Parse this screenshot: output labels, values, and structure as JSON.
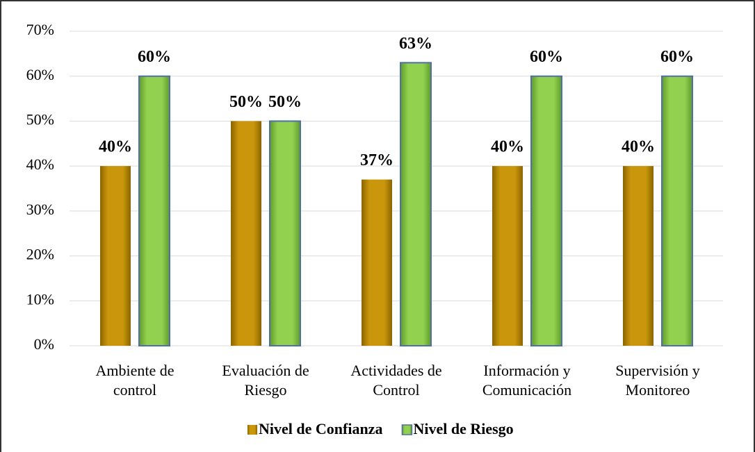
{
  "chart_data": {
    "type": "bar",
    "categories": [
      [
        "Ambiente de",
        "control"
      ],
      [
        "Evaluación de",
        "Riesgo"
      ],
      [
        "Actividades de",
        "Control"
      ],
      [
        "Información y",
        "Comunicación"
      ],
      [
        "Supervisión y",
        "Monitoreo"
      ]
    ],
    "series": [
      {
        "name": "Nivel de Confianza",
        "color": "#c9960c",
        "values": [
          40,
          50,
          37,
          40,
          40
        ],
        "value_labels": [
          "40%",
          "50%",
          "37%",
          "40%",
          "40%"
        ]
      },
      {
        "name": "Nivel de Riesgo",
        "color": "#92d050",
        "values": [
          60,
          50,
          63,
          60,
          60
        ],
        "value_labels": [
          "60%",
          "50%",
          "63%",
          "60%",
          "60%"
        ]
      }
    ],
    "ylim": [
      0,
      70
    ],
    "yticks": [
      {
        "value": 0,
        "label": "0%"
      },
      {
        "value": 10,
        "label": "10%"
      },
      {
        "value": 20,
        "label": "20%"
      },
      {
        "value": 30,
        "label": "30%"
      },
      {
        "value": 40,
        "label": "40%"
      },
      {
        "value": 50,
        "label": "50%"
      },
      {
        "value": 60,
        "label": "60%"
      },
      {
        "value": 70,
        "label": "70%"
      }
    ],
    "grid": true,
    "legend": "bottom"
  }
}
